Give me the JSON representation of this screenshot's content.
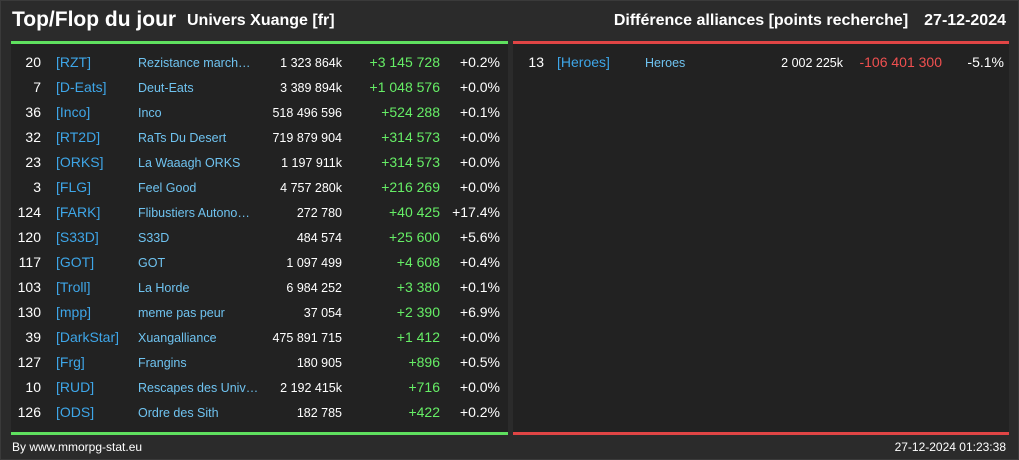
{
  "header": {
    "title": "Top/Flop du jour",
    "universe": "Univers Xuange [fr]",
    "category": "Différence alliances [points recherche]",
    "date": "27-12-2024"
  },
  "colors": {
    "top_accent": "#5fe05f",
    "flop_accent": "#e04545",
    "tag_color": "#3ea6e8",
    "positive": "#66ee66",
    "negative": "#f05050"
  },
  "top": [
    {
      "rank": "20",
      "tag": "[RZT]",
      "name": "Rezistance march…",
      "points": "1 323 864k",
      "diff": "+3 145 728",
      "pct": "+0.2%"
    },
    {
      "rank": "7",
      "tag": "[D-Eats]",
      "name": "Deut-Eats",
      "points": "3 389 894k",
      "diff": "+1 048 576",
      "pct": "+0.0%"
    },
    {
      "rank": "36",
      "tag": "[Inco]",
      "name": "Inco",
      "points": "518 496 596",
      "diff": "+524 288",
      "pct": "+0.1%"
    },
    {
      "rank": "32",
      "tag": "[RT2D]",
      "name": "RaTs Du Desert",
      "points": "719 879 904",
      "diff": "+314 573",
      "pct": "+0.0%"
    },
    {
      "rank": "23",
      "tag": "[ORKS]",
      "name": "La Waaagh ORKS",
      "points": "1 197 911k",
      "diff": "+314 573",
      "pct": "+0.0%"
    },
    {
      "rank": "3",
      "tag": "[FLG]",
      "name": "Feel Good",
      "points": "4 757 280k",
      "diff": "+216 269",
      "pct": "+0.0%"
    },
    {
      "rank": "124",
      "tag": "[FARK]",
      "name": "Flibustiers Autono…",
      "points": "272 780",
      "diff": "+40 425",
      "pct": "+17.4%"
    },
    {
      "rank": "120",
      "tag": "[S33D]",
      "name": "S33D",
      "points": "484 574",
      "diff": "+25 600",
      "pct": "+5.6%"
    },
    {
      "rank": "117",
      "tag": "[GOT]",
      "name": "GOT",
      "points": "1 097 499",
      "diff": "+4 608",
      "pct": "+0.4%"
    },
    {
      "rank": "103",
      "tag": "[Troll]",
      "name": "La Horde",
      "points": "6 984 252",
      "diff": "+3 380",
      "pct": "+0.1%"
    },
    {
      "rank": "130",
      "tag": "[mpp]",
      "name": "meme pas peur",
      "points": "37 054",
      "diff": "+2 390",
      "pct": "+6.9%"
    },
    {
      "rank": "39",
      "tag": "[DarkStar]",
      "name": "Xuangalliance",
      "points": "475 891 715",
      "diff": "+1 412",
      "pct": "+0.0%"
    },
    {
      "rank": "127",
      "tag": "[Frg]",
      "name": "Frangins",
      "points": "180 905",
      "diff": "+896",
      "pct": "+0.5%"
    },
    {
      "rank": "10",
      "tag": "[RUD]",
      "name": "Rescapes des Univ…",
      "points": "2 192 415k",
      "diff": "+716",
      "pct": "+0.0%"
    },
    {
      "rank": "126",
      "tag": "[ODS]",
      "name": "Ordre des Sith",
      "points": "182 785",
      "diff": "+422",
      "pct": "+0.2%"
    }
  ],
  "flop": [
    {
      "rank": "13",
      "tag": "[Heroes]",
      "name": "Heroes",
      "points": "2 002 225k",
      "diff": "-106 401 300",
      "pct": "-5.1%"
    }
  ],
  "footer": {
    "source": "By www.mmorpg-stat.eu",
    "timestamp": "27-12-2024 01:23:38"
  }
}
